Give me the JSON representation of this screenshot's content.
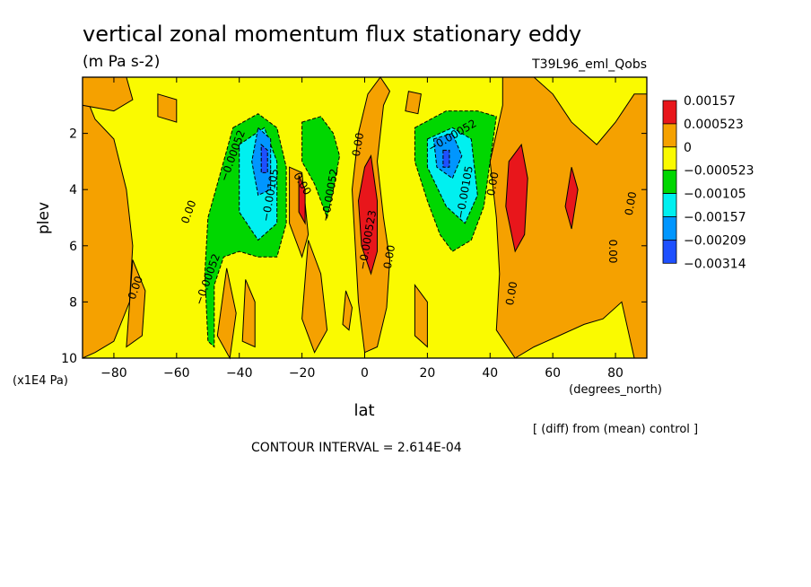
{
  "chart_data": {
    "type": "heatmap",
    "title": "vertical zonal momentum flux stationary eddy",
    "units": "(m Pa s-2)",
    "run_label": "T39L96_eml_Qobs",
    "xlabel": "lat",
    "x_units": "(degrees_north)",
    "ylabel": "plev",
    "y_units": "(x1E4 Pa)",
    "xlim": [
      -90,
      90
    ],
    "ylim": [
      10,
      0
    ],
    "x_ticks": [
      -80,
      -60,
      -40,
      -20,
      0,
      20,
      40,
      60,
      80
    ],
    "y_ticks": [
      2,
      4,
      6,
      8,
      10
    ],
    "contour_interval_text": "CONTOUR INTERVAL = 2.614E-04",
    "note": "[ (diff) from (mean) control ]",
    "colorbar": {
      "levels": [
        "0.00157",
        "0.000523",
        "0",
        "−0.000523",
        "−0.00105",
        "−0.00157",
        "−0.00209",
        "−0.00314"
      ],
      "colors": [
        "#e8161b",
        "#f5a100",
        "#fafa00",
        "#00d700",
        "#00f0f0",
        "#0096ff",
        "#1e50ff"
      ]
    },
    "background_class_color": "#fafa00",
    "regions": [
      {
        "cls": "positive",
        "color": "#f5a100",
        "shape": [
          [
            -90,
            0.4
          ],
          [
            -86,
            1.5
          ],
          [
            -80,
            2.2
          ],
          [
            -76,
            4
          ],
          [
            -74,
            6
          ],
          [
            -75,
            8
          ],
          [
            -80,
            9.4
          ],
          [
            -86,
            9.8
          ],
          [
            -90,
            10
          ]
        ]
      },
      {
        "cls": "positive",
        "color": "#f5a100",
        "shape": [
          [
            -90,
            0
          ],
          [
            -76,
            0
          ],
          [
            -74,
            0.8
          ],
          [
            -80,
            1.2
          ],
          [
            -90,
            1.0
          ]
        ]
      },
      {
        "cls": "positive",
        "color": "#f5a100",
        "shape": [
          [
            -74,
            6.5
          ],
          [
            -70,
            7.6
          ],
          [
            -71,
            9.2
          ],
          [
            -76,
            9.6
          ]
        ]
      },
      {
        "cls": "positive",
        "color": "#f5a100",
        "shape": [
          [
            -66,
            0.6
          ],
          [
            -60,
            0.8
          ],
          [
            -60,
            1.6
          ],
          [
            -66,
            1.4
          ]
        ]
      },
      {
        "cls": "positive",
        "color": "#f5a100",
        "shape": [
          [
            -44,
            6.8
          ],
          [
            -41,
            8.4
          ],
          [
            -43,
            10
          ],
          [
            -47,
            9.2
          ]
        ]
      },
      {
        "cls": "positive",
        "color": "#f5a100",
        "shape": [
          [
            -38,
            7.2
          ],
          [
            -35,
            8
          ],
          [
            -35,
            9.6
          ],
          [
            -39,
            9.4
          ]
        ]
      },
      {
        "cls": "positive",
        "color": "#f5a100",
        "shape": [
          [
            -24,
            3.2
          ],
          [
            -20,
            3.4
          ],
          [
            -18,
            5.6
          ],
          [
            -20,
            6.4
          ],
          [
            -24,
            5.2
          ]
        ]
      },
      {
        "cls": "positive",
        "color": "#f5a100",
        "shape": [
          [
            -18,
            5.8
          ],
          [
            -14,
            7
          ],
          [
            -12,
            9
          ],
          [
            -16,
            9.8
          ],
          [
            -20,
            8.6
          ]
        ]
      },
      {
        "cls": "positive",
        "color": "#f5a100",
        "shape": [
          [
            -6,
            7.6
          ],
          [
            -4,
            8.2
          ],
          [
            -5,
            9
          ],
          [
            -7,
            8.8
          ]
        ]
      },
      {
        "cls": "positive",
        "color": "#f5a100",
        "shape": [
          [
            5,
            0
          ],
          [
            8,
            0.5
          ],
          [
            6,
            1
          ],
          [
            4,
            3
          ],
          [
            6,
            5
          ],
          [
            8,
            6.5
          ],
          [
            7,
            8.2
          ],
          [
            4,
            9.6
          ],
          [
            0,
            9.8
          ],
          [
            -2,
            8
          ],
          [
            -3,
            6
          ],
          [
            -4,
            4
          ],
          [
            -2,
            2
          ],
          [
            1,
            0.6
          ]
        ]
      },
      {
        "cls": "positive",
        "color": "#f5a100",
        "shape": [
          [
            14,
            0.5
          ],
          [
            18,
            0.6
          ],
          [
            17,
            1.3
          ],
          [
            13,
            1.2
          ]
        ]
      },
      {
        "cls": "positive",
        "color": "#f5a100",
        "shape": [
          [
            16,
            7.4
          ],
          [
            20,
            8
          ],
          [
            20,
            9.6
          ],
          [
            16,
            9.2
          ]
        ]
      },
      {
        "cls": "positive",
        "color": "#f5a100",
        "shape": [
          [
            44,
            0
          ],
          [
            54,
            0
          ],
          [
            60,
            0.6
          ],
          [
            66,
            1.6
          ],
          [
            74,
            2.4
          ],
          [
            80,
            1.6
          ],
          [
            86,
            0.6
          ],
          [
            90,
            0.6
          ],
          [
            90,
            10
          ],
          [
            86,
            10
          ],
          [
            82,
            8
          ],
          [
            76,
            8.6
          ],
          [
            70,
            8.8
          ],
          [
            62,
            9.2
          ],
          [
            54,
            9.6
          ],
          [
            48,
            10
          ],
          [
            42,
            9
          ],
          [
            43,
            7
          ],
          [
            42,
            5
          ],
          [
            40,
            3
          ],
          [
            44,
            1
          ]
        ]
      },
      {
        "cls": "max",
        "color": "#e8161b",
        "shape": [
          [
            2,
            2.8
          ],
          [
            4,
            4.4
          ],
          [
            4,
            6.2
          ],
          [
            2,
            7
          ],
          [
            -1,
            6
          ],
          [
            -2,
            4.4
          ],
          [
            0,
            3.2
          ]
        ]
      },
      {
        "cls": "max",
        "color": "#e8161b",
        "shape": [
          [
            -21,
            3.5
          ],
          [
            -19,
            4
          ],
          [
            -19,
            5.2
          ],
          [
            -21,
            4.8
          ]
        ]
      },
      {
        "cls": "max",
        "color": "#e8161b",
        "shape": [
          [
            50,
            2.4
          ],
          [
            52,
            3.6
          ],
          [
            51,
            5.6
          ],
          [
            48,
            6.2
          ],
          [
            45,
            4.6
          ],
          [
            46,
            3
          ]
        ]
      },
      {
        "cls": "max",
        "color": "#e8161b",
        "shape": [
          [
            66,
            3.2
          ],
          [
            68,
            4
          ],
          [
            66,
            5.4
          ],
          [
            64,
            4.6
          ]
        ]
      },
      {
        "cls": "negative",
        "color": "#00d700",
        "shape": [
          [
            -42,
            1.8
          ],
          [
            -34,
            1.3
          ],
          [
            -28,
            1.8
          ],
          [
            -25,
            3.2
          ],
          [
            -25,
            5.2
          ],
          [
            -28,
            6.4
          ],
          [
            -34,
            6.4
          ],
          [
            -40,
            6.2
          ],
          [
            -45,
            6.4
          ],
          [
            -48,
            7.4
          ],
          [
            -48,
            9.6
          ],
          [
            -50,
            9.4
          ],
          [
            -51,
            7
          ],
          [
            -50,
            5
          ],
          [
            -46,
            3.4
          ]
        ]
      },
      {
        "cls": "negative",
        "color": "#00d700",
        "shape": [
          [
            -20,
            1.6
          ],
          [
            -14,
            1.4
          ],
          [
            -10,
            2
          ],
          [
            -8,
            2.8
          ],
          [
            -10,
            4
          ],
          [
            -12,
            5
          ],
          [
            -14,
            4.4
          ],
          [
            -16,
            3.8
          ],
          [
            -20,
            3
          ]
        ]
      },
      {
        "cls": "negative",
        "color": "#00d700",
        "shape": [
          [
            16,
            1.8
          ],
          [
            26,
            1.2
          ],
          [
            36,
            1.2
          ],
          [
            42,
            1.4
          ],
          [
            40,
            3
          ],
          [
            38,
            4.6
          ],
          [
            34,
            5.8
          ],
          [
            28,
            6.2
          ],
          [
            24,
            5.6
          ],
          [
            20,
            4.4
          ],
          [
            16,
            3
          ]
        ]
      },
      {
        "cls": "strong",
        "color": "#00f0f0",
        "shape": [
          [
            -40,
            2.4
          ],
          [
            -32,
            1.8
          ],
          [
            -28,
            3
          ],
          [
            -28,
            5.2
          ],
          [
            -34,
            5.8
          ],
          [
            -40,
            4.8
          ]
        ]
      },
      {
        "cls": "strong",
        "color": "#00f0f0",
        "shape": [
          [
            20,
            2.2
          ],
          [
            28,
            1.8
          ],
          [
            34,
            2.2
          ],
          [
            36,
            4.2
          ],
          [
            32,
            5.2
          ],
          [
            26,
            4.6
          ],
          [
            20,
            3.2
          ]
        ]
      },
      {
        "cls": "stronger",
        "color": "#0096ff",
        "shape": [
          [
            -34,
            1.8
          ],
          [
            -30,
            2.2
          ],
          [
            -30,
            4
          ],
          [
            -34,
            4.2
          ],
          [
            -36,
            3
          ]
        ]
      },
      {
        "cls": "stronger",
        "color": "#0096ff",
        "shape": [
          [
            22,
            2.2
          ],
          [
            28,
            2
          ],
          [
            31,
            2.8
          ],
          [
            28,
            3.6
          ],
          [
            23,
            3.2
          ]
        ]
      },
      {
        "cls": "strongest",
        "color": "#1e50ff",
        "shape": [
          [
            -33,
            2.4
          ],
          [
            -31,
            2.6
          ],
          [
            -31,
            3.4
          ],
          [
            -33,
            3.4
          ]
        ]
      },
      {
        "cls": "strongest",
        "color": "#1e50ff",
        "shape": [
          [
            25,
            2.6
          ],
          [
            27,
            2.6
          ],
          [
            27,
            3.2
          ],
          [
            25,
            3.2
          ]
        ]
      }
    ],
    "contour_labels": [
      {
        "text": "0.00",
        "lon": -73,
        "plev": 7.5,
        "rot": -70
      },
      {
        "text": "0.00",
        "lon": -56,
        "plev": 4.8,
        "rot": -70
      },
      {
        "text": "−0.00052",
        "lon": -50,
        "plev": 7.2,
        "rot": -70
      },
      {
        "text": "−0.00052",
        "lon": -42,
        "plev": 2.8,
        "rot": -70
      },
      {
        "text": "−0.00105",
        "lon": -30,
        "plev": 4.2,
        "rot": -80
      },
      {
        "text": "0.00",
        "lon": -20,
        "plev": 3.8,
        "rot": 60
      },
      {
        "text": "−0.00052",
        "lon": -11,
        "plev": 4.2,
        "rot": -80
      },
      {
        "text": "0.00",
        "lon": -2,
        "plev": 2.4,
        "rot": -80
      },
      {
        "text": "−0.000523",
        "lon": 1,
        "plev": 5.8,
        "rot": -80
      },
      {
        "text": "0.00",
        "lon": 8,
        "plev": 6.4,
        "rot": -80
      },
      {
        "text": "−0.00052",
        "lon": 28,
        "plev": 2.1,
        "rot": -30
      },
      {
        "text": "−0.00105",
        "lon": 32,
        "plev": 4.1,
        "rot": -80
      },
      {
        "text": "0.00",
        "lon": 41,
        "plev": 3.8,
        "rot": -80
      },
      {
        "text": "0.00",
        "lon": 47,
        "plev": 7.7,
        "rot": -80
      },
      {
        "text": "0.00",
        "lon": 79,
        "plev": 6.2,
        "rot": 90
      },
      {
        "text": "0.00",
        "lon": 85,
        "plev": 4.5,
        "rot": -80
      }
    ]
  }
}
